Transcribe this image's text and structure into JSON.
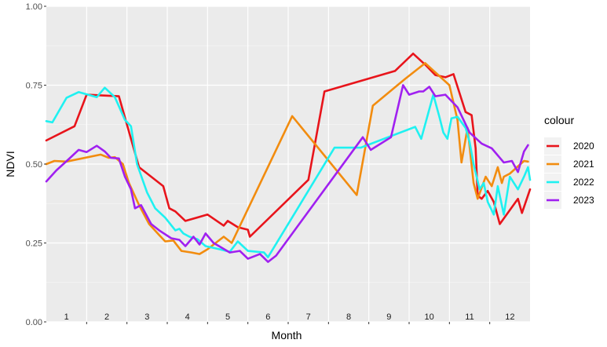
{
  "chart_data": {
    "type": "line",
    "xlabel": "Month",
    "ylabel": "NDVI",
    "xlim": [
      0.5,
      12.5
    ],
    "ylim": [
      0,
      1
    ],
    "yticks": [
      0,
      0.25,
      0.5,
      0.75,
      1
    ],
    "ytick_labels": [
      "0.00",
      "0.25",
      "0.50",
      "0.75",
      "1.00"
    ],
    "month_labels": [
      "1",
      "2",
      "3",
      "4",
      "5",
      "6",
      "7",
      "8",
      "9",
      "10",
      "11",
      "12"
    ],
    "grid": true,
    "legend_position": "right",
    "legend_title": "colour",
    "series": [
      {
        "name": "2020",
        "color": "#e8141b",
        "points": [
          [
            0.5,
            0.575
          ],
          [
            1.2,
            0.62
          ],
          [
            1.5,
            0.72
          ],
          [
            2.3,
            0.715
          ],
          [
            2.8,
            0.49
          ],
          [
            3.4,
            0.43
          ],
          [
            3.55,
            0.36
          ],
          [
            3.7,
            0.35
          ],
          [
            3.95,
            0.32
          ],
          [
            4.5,
            0.34
          ],
          [
            4.9,
            0.305
          ],
          [
            5.0,
            0.32
          ],
          [
            5.25,
            0.3
          ],
          [
            5.5,
            0.292
          ],
          [
            5.55,
            0.27
          ],
          [
            7.0,
            0.45
          ],
          [
            7.4,
            0.73
          ],
          [
            9.15,
            0.795
          ],
          [
            9.6,
            0.85
          ],
          [
            9.9,
            0.815
          ],
          [
            10.15,
            0.782
          ],
          [
            10.4,
            0.775
          ],
          [
            10.6,
            0.785
          ],
          [
            10.9,
            0.665
          ],
          [
            11.05,
            0.655
          ],
          [
            11.15,
            0.55
          ],
          [
            11.2,
            0.4
          ],
          [
            11.3,
            0.39
          ],
          [
            11.45,
            0.415
          ],
          [
            11.6,
            0.38
          ],
          [
            11.75,
            0.31
          ],
          [
            12.2,
            0.39
          ],
          [
            12.3,
            0.345
          ],
          [
            12.5,
            0.42
          ]
        ]
      },
      {
        "name": "2021",
        "color": "#f28c0f",
        "points": [
          [
            0.5,
            0.5
          ],
          [
            0.7,
            0.51
          ],
          [
            1.0,
            0.508
          ],
          [
            1.85,
            0.53
          ],
          [
            2.05,
            0.52
          ],
          [
            2.2,
            0.522
          ],
          [
            2.4,
            0.5
          ],
          [
            2.55,
            0.44
          ],
          [
            2.8,
            0.37
          ],
          [
            3.05,
            0.31
          ],
          [
            3.3,
            0.275
          ],
          [
            3.45,
            0.255
          ],
          [
            3.65,
            0.258
          ],
          [
            3.85,
            0.225
          ],
          [
            4.1,
            0.22
          ],
          [
            4.3,
            0.215
          ],
          [
            4.5,
            0.23
          ],
          [
            4.9,
            0.27
          ],
          [
            5.0,
            0.26
          ],
          [
            5.1,
            0.25
          ],
          [
            6.6,
            0.652
          ],
          [
            8.2,
            0.402
          ],
          [
            8.6,
            0.685
          ],
          [
            9.4,
            0.77
          ],
          [
            9.9,
            0.82
          ],
          [
            10.5,
            0.75
          ],
          [
            10.7,
            0.64
          ],
          [
            10.8,
            0.505
          ],
          [
            10.95,
            0.615
          ],
          [
            11.1,
            0.44
          ],
          [
            11.2,
            0.39
          ],
          [
            11.4,
            0.46
          ],
          [
            11.55,
            0.43
          ],
          [
            11.7,
            0.49
          ],
          [
            11.8,
            0.44
          ],
          [
            11.85,
            0.46
          ],
          [
            12.0,
            0.47
          ],
          [
            12.35,
            0.51
          ],
          [
            12.45,
            0.508
          ]
        ]
      },
      {
        "name": "2022",
        "color": "#1ff1f1",
        "points": [
          [
            0.5,
            0.636
          ],
          [
            0.65,
            0.632
          ],
          [
            1.0,
            0.71
          ],
          [
            1.3,
            0.728
          ],
          [
            1.75,
            0.712
          ],
          [
            1.95,
            0.742
          ],
          [
            2.2,
            0.712
          ],
          [
            2.45,
            0.64
          ],
          [
            2.6,
            0.62
          ],
          [
            2.75,
            0.5
          ],
          [
            3.0,
            0.41
          ],
          [
            3.2,
            0.36
          ],
          [
            3.45,
            0.33
          ],
          [
            3.7,
            0.29
          ],
          [
            3.8,
            0.295
          ],
          [
            3.9,
            0.28
          ],
          [
            4.05,
            0.27
          ],
          [
            4.25,
            0.262
          ],
          [
            4.45,
            0.24
          ],
          [
            4.8,
            0.23
          ],
          [
            5.05,
            0.222
          ],
          [
            5.25,
            0.255
          ],
          [
            5.5,
            0.225
          ],
          [
            5.9,
            0.22
          ],
          [
            6.0,
            0.205
          ],
          [
            7.65,
            0.552
          ],
          [
            8.3,
            0.552
          ],
          [
            9.65,
            0.618
          ],
          [
            9.8,
            0.58
          ],
          [
            10.1,
            0.72
          ],
          [
            10.25,
            0.65
          ],
          [
            10.35,
            0.6
          ],
          [
            10.45,
            0.58
          ],
          [
            10.55,
            0.645
          ],
          [
            10.7,
            0.65
          ],
          [
            10.9,
            0.615
          ],
          [
            11.0,
            0.57
          ],
          [
            11.1,
            0.5
          ],
          [
            11.25,
            0.42
          ],
          [
            11.35,
            0.44
          ],
          [
            11.45,
            0.38
          ],
          [
            11.6,
            0.34
          ],
          [
            11.7,
            0.43
          ],
          [
            11.85,
            0.34
          ],
          [
            12.0,
            0.46
          ],
          [
            12.2,
            0.42
          ],
          [
            12.35,
            0.46
          ],
          [
            12.45,
            0.49
          ],
          [
            12.5,
            0.45
          ]
        ]
      },
      {
        "name": "2023",
        "color": "#a020f0",
        "points": [
          [
            0.5,
            0.445
          ],
          [
            0.75,
            0.48
          ],
          [
            1.05,
            0.515
          ],
          [
            1.3,
            0.545
          ],
          [
            1.5,
            0.538
          ],
          [
            1.75,
            0.558
          ],
          [
            1.95,
            0.54
          ],
          [
            2.1,
            0.52
          ],
          [
            2.3,
            0.518
          ],
          [
            2.45,
            0.46
          ],
          [
            2.6,
            0.42
          ],
          [
            2.7,
            0.36
          ],
          [
            2.85,
            0.37
          ],
          [
            3.1,
            0.31
          ],
          [
            3.3,
            0.29
          ],
          [
            3.6,
            0.265
          ],
          [
            3.8,
            0.26
          ],
          [
            3.95,
            0.24
          ],
          [
            4.15,
            0.27
          ],
          [
            4.3,
            0.245
          ],
          [
            4.45,
            0.28
          ],
          [
            4.65,
            0.25
          ],
          [
            4.85,
            0.235
          ],
          [
            5.05,
            0.22
          ],
          [
            5.3,
            0.225
          ],
          [
            5.5,
            0.2
          ],
          [
            5.8,
            0.215
          ],
          [
            6.0,
            0.19
          ],
          [
            6.2,
            0.21
          ],
          [
            8.35,
            0.585
          ],
          [
            8.55,
            0.545
          ],
          [
            9.05,
            0.585
          ],
          [
            9.35,
            0.75
          ],
          [
            9.5,
            0.72
          ],
          [
            9.75,
            0.73
          ],
          [
            9.85,
            0.73
          ],
          [
            10.0,
            0.745
          ],
          [
            10.15,
            0.715
          ],
          [
            10.4,
            0.72
          ],
          [
            10.7,
            0.68
          ],
          [
            11.0,
            0.6
          ],
          [
            11.3,
            0.565
          ],
          [
            11.55,
            0.55
          ],
          [
            11.85,
            0.505
          ],
          [
            12.05,
            0.51
          ],
          [
            12.2,
            0.475
          ],
          [
            12.35,
            0.54
          ],
          [
            12.45,
            0.56
          ]
        ]
      }
    ]
  }
}
